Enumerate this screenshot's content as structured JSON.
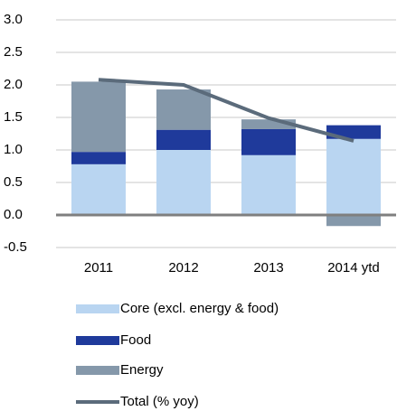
{
  "chart_data": {
    "type": "stacked_bar_line",
    "categories": [
      "2011",
      "2012",
      "2013",
      "2014 ytd"
    ],
    "series": [
      {
        "name": "Core (excl. energy & food)",
        "color": "#b9d5f1",
        "values": [
          0.78,
          1.0,
          0.92,
          1.17
        ]
      },
      {
        "name": "Food",
        "color": "#1f3a9b",
        "values": [
          0.19,
          0.31,
          0.4,
          0.21
        ]
      },
      {
        "name": "Energy",
        "color": "#8598aa",
        "values": [
          1.08,
          0.62,
          0.15,
          -0.17
        ]
      },
      {
        "name": "Total (% yoy)",
        "type": "line",
        "color": "#5b6b7b",
        "values": [
          2.08,
          2.0,
          1.49,
          1.14
        ]
      }
    ],
    "ylim": [
      -0.5,
      3.0
    ],
    "yticks": [
      {
        "value": 3.0,
        "label": "3.0"
      },
      2.5,
      {
        "value": 2.0,
        "label": "2.0"
      },
      1.5,
      {
        "value": 1.0,
        "label": "1.0"
      },
      0.5,
      {
        "value": 0.0,
        "label": "0.0"
      },
      -0.5
    ],
    "grid": true
  }
}
